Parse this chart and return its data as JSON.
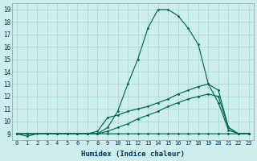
{
  "xlabel": "Humidex (Indice chaleur)",
  "background_color": "#cdeeed",
  "grid_color": "#aaddcc",
  "line_color": "#006655",
  "xlim": [
    -0.5,
    23.5
  ],
  "ylim": [
    8.5,
    19.5
  ],
  "xticks": [
    0,
    1,
    2,
    3,
    4,
    5,
    6,
    7,
    8,
    9,
    10,
    11,
    12,
    13,
    14,
    15,
    16,
    17,
    18,
    19,
    20,
    21,
    22,
    23
  ],
  "yticks": [
    9,
    10,
    11,
    12,
    13,
    14,
    15,
    16,
    17,
    18,
    19
  ],
  "lines": [
    {
      "x": [
        0,
        1,
        2,
        3,
        4,
        5,
        6,
        7,
        8,
        9,
        10,
        11,
        12,
        13,
        14,
        15,
        16,
        17,
        18,
        19,
        20,
        21,
        22,
        23
      ],
      "y": [
        9,
        8.8,
        9,
        9,
        9,
        9,
        9,
        9,
        9,
        9,
        9,
        9,
        9,
        9,
        9,
        9,
        9,
        9,
        9,
        9,
        9,
        9,
        9,
        9
      ]
    },
    {
      "x": [
        0,
        1,
        3,
        4,
        5,
        6,
        7,
        8,
        9,
        10,
        11,
        12,
        13,
        14,
        15,
        16,
        17,
        18,
        19,
        20,
        21,
        22,
        23
      ],
      "y": [
        9,
        9,
        9,
        9,
        9,
        9,
        9,
        9,
        9.5,
        10.8,
        13.0,
        15.0,
        17.5,
        19.0,
        19.0,
        18.5,
        17.5,
        16.2,
        13.0,
        12.5,
        9.5,
        9,
        9
      ]
    },
    {
      "x": [
        0,
        1,
        3,
        4,
        5,
        6,
        7,
        8,
        9,
        10,
        11,
        12,
        13,
        14,
        15,
        16,
        17,
        18,
        19,
        20,
        21,
        22,
        23
      ],
      "y": [
        9,
        9,
        9,
        9,
        9,
        9,
        9,
        9,
        9.2,
        9.5,
        9.8,
        10.2,
        10.5,
        10.8,
        11.2,
        11.5,
        11.8,
        12.0,
        12.2,
        12.0,
        9.5,
        9,
        9
      ]
    },
    {
      "x": [
        0,
        1,
        3,
        4,
        5,
        7,
        8,
        9,
        10,
        11,
        12,
        13,
        14,
        15,
        16,
        17,
        18,
        19,
        20,
        21,
        22,
        23
      ],
      "y": [
        9,
        9,
        9,
        9,
        9,
        9,
        9.2,
        10.3,
        10.5,
        10.8,
        11.0,
        11.2,
        11.5,
        11.8,
        12.2,
        12.5,
        12.8,
        13.0,
        11.5,
        9.3,
        9,
        9
      ]
    }
  ]
}
